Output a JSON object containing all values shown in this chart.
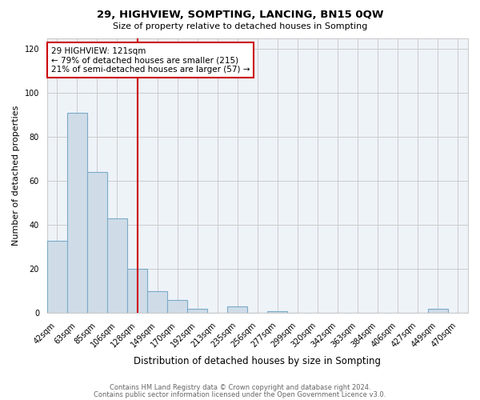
{
  "title": "29, HIGHVIEW, SOMPTING, LANCING, BN15 0QW",
  "subtitle": "Size of property relative to detached houses in Sompting",
  "xlabel": "Distribution of detached houses by size in Sompting",
  "ylabel": "Number of detached properties",
  "bar_labels": [
    "42sqm",
    "63sqm",
    "85sqm",
    "106sqm",
    "128sqm",
    "149sqm",
    "170sqm",
    "192sqm",
    "213sqm",
    "235sqm",
    "256sqm",
    "277sqm",
    "299sqm",
    "320sqm",
    "342sqm",
    "363sqm",
    "384sqm",
    "406sqm",
    "427sqm",
    "449sqm",
    "470sqm"
  ],
  "bar_values": [
    33,
    91,
    64,
    43,
    20,
    10,
    6,
    2,
    0,
    3,
    0,
    1,
    0,
    0,
    0,
    0,
    0,
    0,
    0,
    2,
    0
  ],
  "bar_color": "#cfdce8",
  "bar_edge_color": "#7aaac8",
  "vline_x_index": 4,
  "vline_color": "#cc0000",
  "annotation_text": "29 HIGHVIEW: 121sqm\n← 79% of detached houses are smaller (215)\n21% of semi-detached houses are larger (57) →",
  "annotation_box_color": "#ffffff",
  "annotation_box_edge_color": "#cc0000",
  "ylim": [
    0,
    125
  ],
  "yticks": [
    0,
    20,
    40,
    60,
    80,
    100,
    120
  ],
  "footer_line1": "Contains HM Land Registry data © Crown copyright and database right 2024.",
  "footer_line2": "Contains public sector information licensed under the Open Government Licence v3.0.",
  "background_color": "#ffffff",
  "grid_color": "#cccccc",
  "title_fontsize": 9.5,
  "subtitle_fontsize": 8,
  "ylabel_fontsize": 8,
  "xlabel_fontsize": 8.5,
  "tick_fontsize": 7,
  "annotation_fontsize": 7.5
}
